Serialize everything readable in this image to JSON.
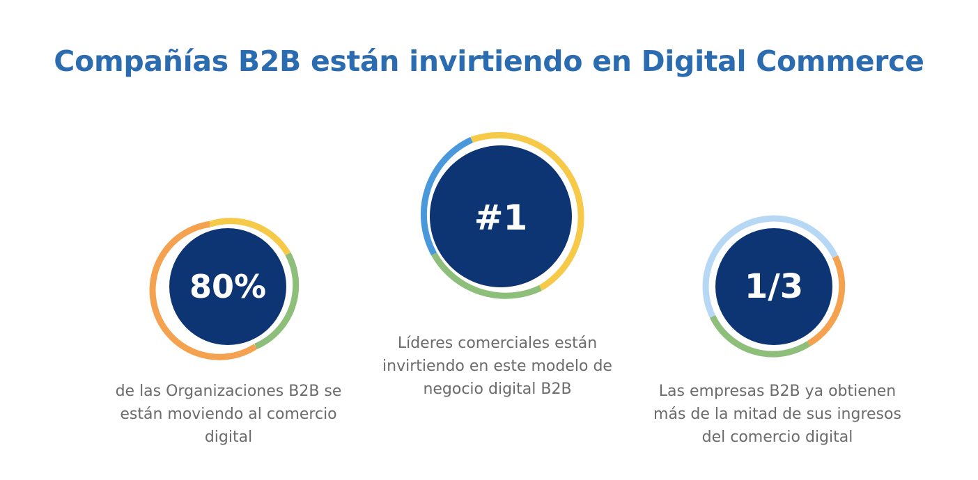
{
  "title": "Compañías B2B están invirtiendo en Digital Commerce",
  "colors": {
    "title": "#2b6cb0",
    "circle": "#0d3473",
    "yellow": "#f7c948",
    "orange": "#f4a150",
    "green": "#8dbf7b",
    "blue": "#4a98dc",
    "lightblue": "#b7d8f5",
    "caption": "#6b6b6b"
  },
  "stats": [
    {
      "value": "80%",
      "caption_lines": [
        "de las Organizaciones B2B se",
        "están moviendo al comercio",
        "digital"
      ]
    },
    {
      "value": "#1",
      "caption_lines": [
        "Líderes comerciales están",
        "invirtiendo en este modelo de",
        "negocio digital B2B"
      ]
    },
    {
      "value": "1/3",
      "caption_lines": [
        "Las empresas B2B ya obtienen",
        "más de la mitad de sus ingresos",
        "del comercio digital"
      ]
    }
  ]
}
